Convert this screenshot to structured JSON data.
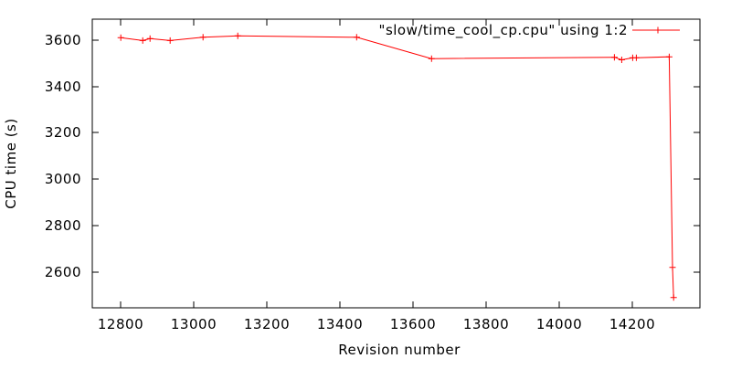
{
  "chart_data": {
    "type": "line",
    "title": "",
    "legend_label": "\"slow/time_cool_cp.cpu\" using 1:2",
    "legend_position": "top-right-inside",
    "xlabel": "Revision number",
    "ylabel": "CPU time (s)",
    "xlim": [
      12722,
      14384
    ],
    "ylim": [
      2446,
      3690
    ],
    "x_ticks": [
      12800,
      13000,
      13200,
      13400,
      13600,
      13800,
      14000,
      14200
    ],
    "y_ticks": [
      2600,
      2800,
      3000,
      3200,
      3400,
      3600
    ],
    "grid": false,
    "marker": "plus",
    "colors": {
      "series": "#ff0000",
      "axis": "#000000",
      "background": "#ffffff"
    },
    "series": [
      {
        "name": "\"slow/time_cool_cp.cpu\" using 1:2",
        "color": "#ff0000",
        "points": [
          [
            12800,
            3610
          ],
          [
            12860,
            3598
          ],
          [
            12880,
            3606
          ],
          [
            12935,
            3598
          ],
          [
            13025,
            3612
          ],
          [
            13120,
            3618
          ],
          [
            13445,
            3612
          ],
          [
            13650,
            3520
          ],
          [
            14150,
            3526
          ],
          [
            14170,
            3515
          ],
          [
            14200,
            3524
          ],
          [
            14210,
            3524
          ],
          [
            14300,
            3528
          ],
          [
            14309,
            2620
          ],
          [
            14312,
            2490
          ]
        ]
      }
    ]
  }
}
